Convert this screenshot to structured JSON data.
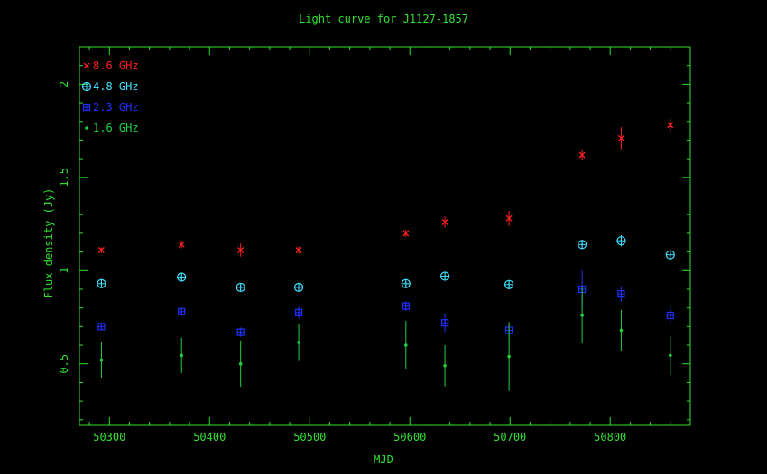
{
  "chart_data": {
    "type": "scatter",
    "title": "Light curve for J1127-1857",
    "xlabel": "MJD",
    "ylabel": "Flux density (Jy)",
    "xlim": [
      50270,
      50880
    ],
    "ylim": [
      0.17,
      2.2
    ],
    "xticks": [
      50300,
      50400,
      50500,
      50600,
      50700,
      50800
    ],
    "yticks": [
      0.5,
      1,
      1.5,
      2
    ],
    "legend_position": "top-left",
    "series": [
      {
        "name": "8.6 GHz",
        "color": "#ff2020",
        "marker": "x",
        "points": [
          {
            "x": 50292,
            "y": 1.11,
            "err": 0.015
          },
          {
            "x": 50372,
            "y": 1.14,
            "err": 0.02
          },
          {
            "x": 50431,
            "y": 1.11,
            "err": 0.035
          },
          {
            "x": 50489,
            "y": 1.11,
            "err": 0.02
          },
          {
            "x": 50596,
            "y": 1.2,
            "err": 0.02
          },
          {
            "x": 50635,
            "y": 1.26,
            "err": 0.03
          },
          {
            "x": 50699,
            "y": 1.28,
            "err": 0.04
          },
          {
            "x": 50772,
            "y": 1.62,
            "err": 0.03
          },
          {
            "x": 50811,
            "y": 1.71,
            "err": 0.06
          },
          {
            "x": 50860,
            "y": 1.78,
            "err": 0.035
          }
        ]
      },
      {
        "name": "4.8 GHz",
        "color": "#40e0ff",
        "marker": "circle-plus",
        "points": [
          {
            "x": 50292,
            "y": 0.93,
            "err": 0.015
          },
          {
            "x": 50372,
            "y": 0.965,
            "err": 0.02
          },
          {
            "x": 50431,
            "y": 0.91,
            "err": 0.015
          },
          {
            "x": 50489,
            "y": 0.91,
            "err": 0.015
          },
          {
            "x": 50596,
            "y": 0.93,
            "err": 0.015
          },
          {
            "x": 50635,
            "y": 0.97,
            "err": 0.02
          },
          {
            "x": 50699,
            "y": 0.925,
            "err": 0.025
          },
          {
            "x": 50772,
            "y": 1.14,
            "err": 0.025
          },
          {
            "x": 50811,
            "y": 1.16,
            "err": 0.03
          },
          {
            "x": 50860,
            "y": 1.085,
            "err": 0.025
          }
        ]
      },
      {
        "name": "2.3 GHz",
        "color": "#2030ff",
        "marker": "square-plus",
        "points": [
          {
            "x": 50292,
            "y": 0.7,
            "err": 0.015
          },
          {
            "x": 50372,
            "y": 0.78,
            "err": 0.02
          },
          {
            "x": 50431,
            "y": 0.67,
            "err": 0.025
          },
          {
            "x": 50489,
            "y": 0.775,
            "err": 0.03
          },
          {
            "x": 50596,
            "y": 0.81,
            "err": 0.025
          },
          {
            "x": 50635,
            "y": 0.72,
            "err": 0.05
          },
          {
            "x": 50699,
            "y": 0.68,
            "err": 0.04
          },
          {
            "x": 50772,
            "y": 0.9,
            "err": 0.1
          },
          {
            "x": 50811,
            "y": 0.875,
            "err": 0.04
          },
          {
            "x": 50860,
            "y": 0.76,
            "err": 0.05
          }
        ]
      },
      {
        "name": "1.6 GHz",
        "color": "#20d040",
        "marker": "dot",
        "points": [
          {
            "x": 50292,
            "y": 0.52,
            "err": 0.095
          },
          {
            "x": 50372,
            "y": 0.545,
            "err": 0.095
          },
          {
            "x": 50431,
            "y": 0.5,
            "err": 0.125
          },
          {
            "x": 50489,
            "y": 0.615,
            "err": 0.1
          },
          {
            "x": 50596,
            "y": 0.6,
            "err": 0.13
          },
          {
            "x": 50635,
            "y": 0.49,
            "err": 0.11
          },
          {
            "x": 50699,
            "y": 0.54,
            "err": 0.185
          },
          {
            "x": 50772,
            "y": 0.76,
            "err": 0.15
          },
          {
            "x": 50811,
            "y": 0.68,
            "err": 0.11
          },
          {
            "x": 50860,
            "y": 0.545,
            "err": 0.105
          }
        ]
      }
    ]
  },
  "colors": {
    "background": "#000000",
    "axis": "#30e030",
    "text": "#30e030"
  }
}
